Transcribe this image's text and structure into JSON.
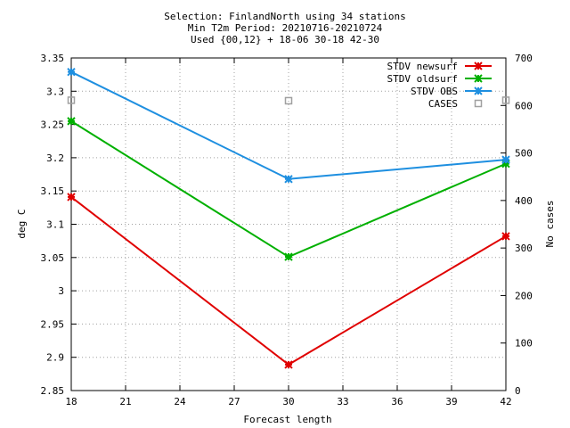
{
  "chart_data": {
    "type": "line",
    "title_lines": [
      "Selection: FinlandNorth using    34 stations",
      "Min T2m   Period: 20210716-20210724",
      "Used {00,12} + 18-06 30-18 42-30"
    ],
    "xlabel": "Forecast length",
    "ylabel": "deg C",
    "y2label": "No cases",
    "xlim": [
      18,
      42
    ],
    "ylim": [
      2.85,
      3.35
    ],
    "y2lim": [
      0,
      700
    ],
    "xticks": [
      "18",
      "21",
      "24",
      "27",
      "30",
      "33",
      "36",
      "39",
      "42"
    ],
    "yticks": [
      "3.35",
      "3.3",
      "3.25",
      "3.2",
      "3.15",
      "3.1",
      "3.05",
      "3",
      "2.95",
      "2.9",
      "2.85"
    ],
    "y2ticks": [
      "700",
      "600",
      "500",
      "400",
      "300",
      "200",
      "100",
      "0"
    ],
    "legend_position": "top-right",
    "grid": true,
    "x": [
      18,
      30,
      42
    ],
    "series": [
      {
        "name": "STDV newsurf",
        "color": "#e00000",
        "axis": "y",
        "marker": "star",
        "values": [
          3.141,
          2.889,
          3.082
        ]
      },
      {
        "name": "STDV oldsurf",
        "color": "#00b000",
        "axis": "y",
        "marker": "star",
        "values": [
          3.255,
          3.051,
          3.191
        ]
      },
      {
        "name": "STDV OBS",
        "color": "#1e8fe0",
        "axis": "y",
        "marker": "star",
        "values": [
          3.329,
          3.168,
          3.197
        ]
      },
      {
        "name": "CASES",
        "color": "#a0a0a0",
        "axis": "y2",
        "marker": "square",
        "values": [
          611,
          610,
          611
        ]
      }
    ]
  }
}
